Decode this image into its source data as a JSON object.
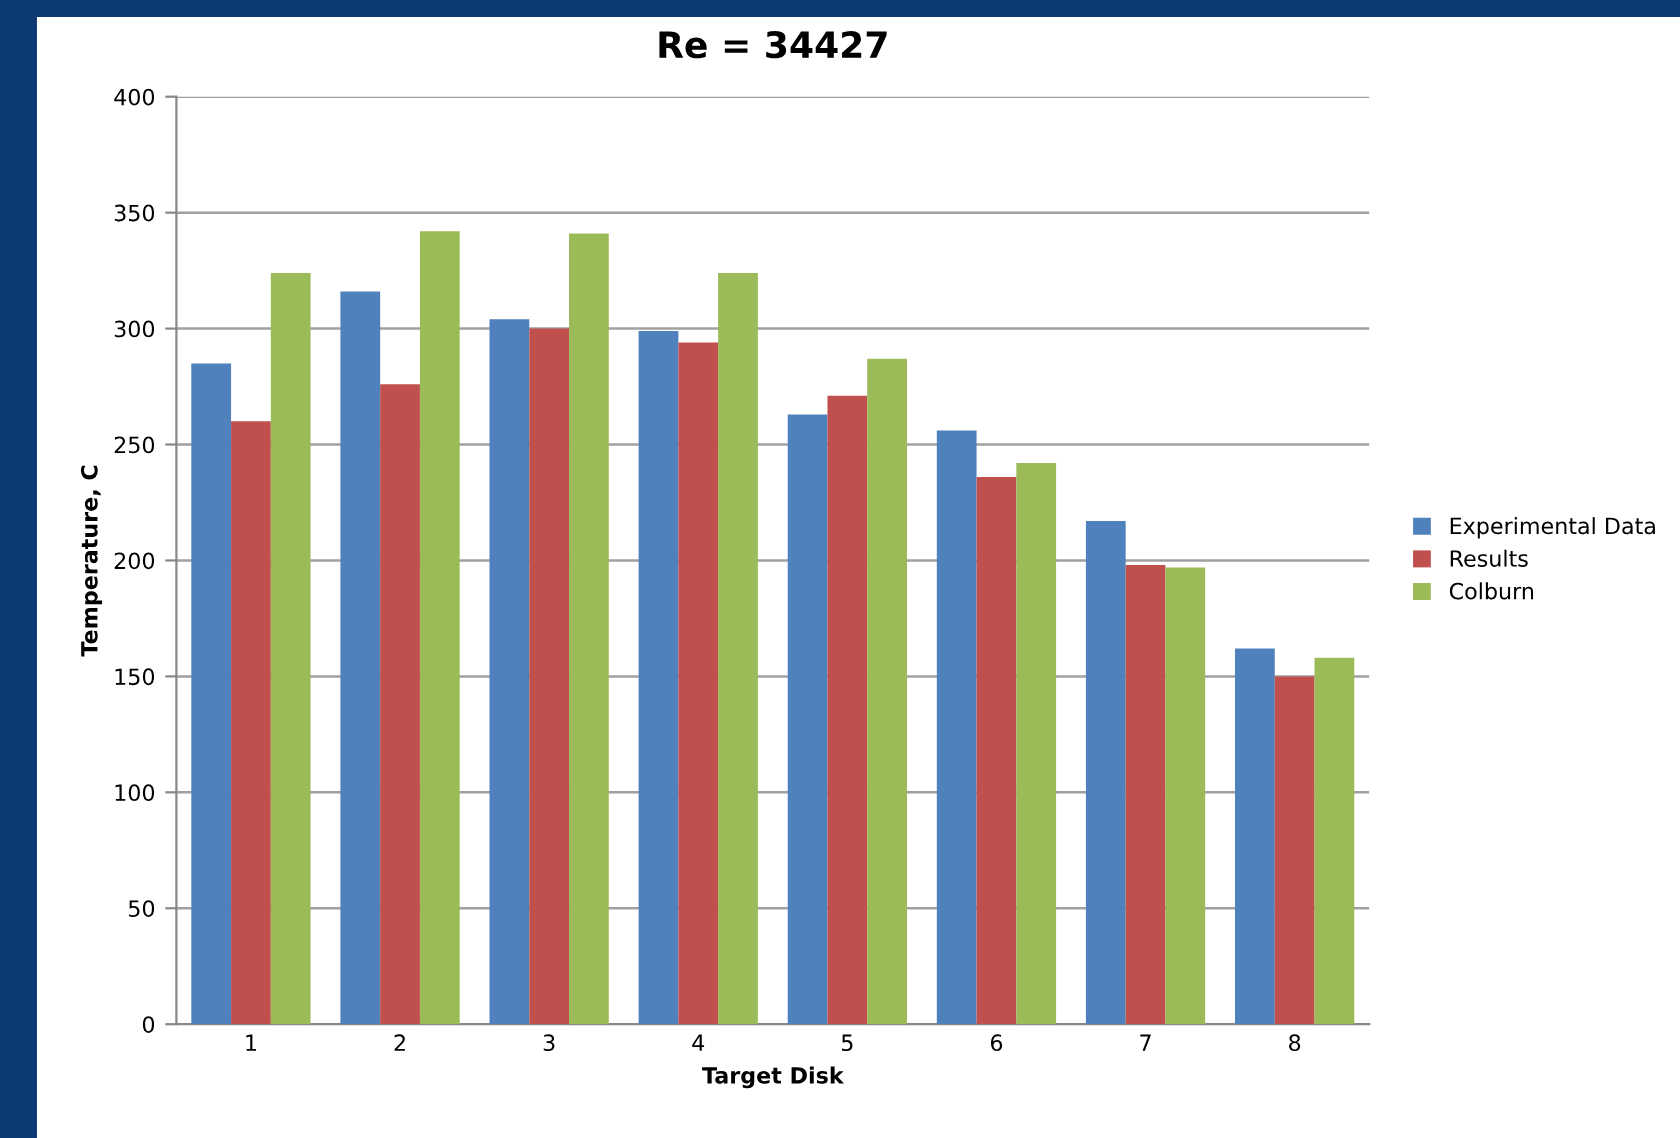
{
  "chart_data": {
    "type": "bar",
    "title": "Re = 34427",
    "xlabel": "Target Disk",
    "ylabel": "Temperature, C",
    "categories": [
      "1",
      "2",
      "3",
      "4",
      "5",
      "6",
      "7",
      "8"
    ],
    "series": [
      {
        "name": "Experimental Data",
        "color": "#4f81bd",
        "values": [
          285,
          316,
          304,
          299,
          263,
          256,
          217,
          162
        ]
      },
      {
        "name": "Results",
        "color": "#c0504d",
        "values": [
          260,
          276,
          300,
          294,
          271,
          236,
          198,
          150
        ]
      },
      {
        "name": "Colburn",
        "color": "#9bbb59",
        "values": [
          324,
          342,
          341,
          324,
          287,
          242,
          197,
          158
        ]
      }
    ],
    "ylim": [
      0,
      400
    ],
    "yticks": [
      0,
      50,
      100,
      150,
      200,
      250,
      300,
      350,
      400
    ],
    "grid": "y",
    "legend": "right"
  }
}
